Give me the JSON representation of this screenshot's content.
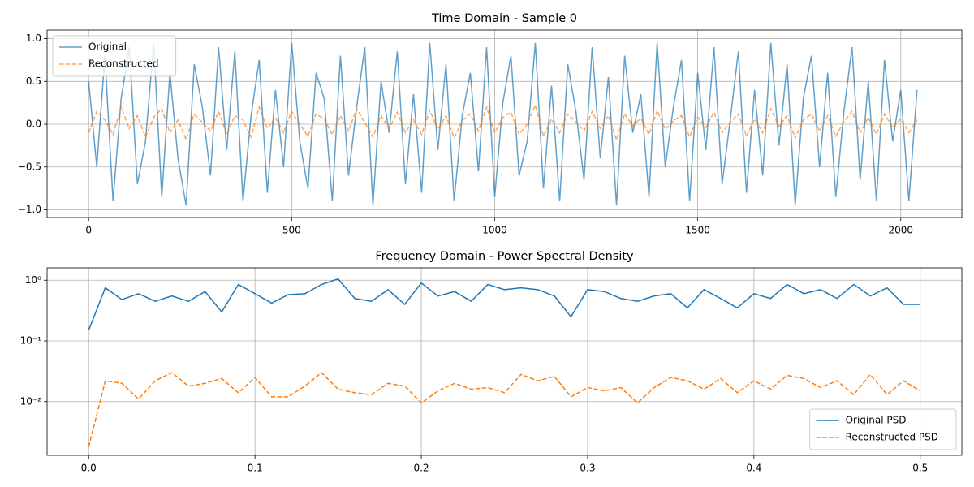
{
  "chart_data": [
    {
      "type": "line",
      "title": "Time Domain - Sample 0",
      "x": [
        0,
        20,
        40,
        60,
        80,
        100,
        120,
        140,
        160,
        180,
        200,
        220,
        240,
        260,
        280,
        300,
        320,
        340,
        360,
        380,
        400,
        420,
        440,
        460,
        480,
        500,
        520,
        540,
        560,
        580,
        600,
        620,
        640,
        660,
        680,
        700,
        720,
        740,
        760,
        780,
        800,
        820,
        840,
        860,
        880,
        900,
        920,
        940,
        960,
        980,
        1000,
        1020,
        1040,
        1060,
        1080,
        1100,
        1120,
        1140,
        1160,
        1180,
        1200,
        1220,
        1240,
        1260,
        1280,
        1300,
        1320,
        1340,
        1360,
        1380,
        1400,
        1420,
        1440,
        1460,
        1480,
        1500,
        1520,
        1540,
        1560,
        1580,
        1600,
        1620,
        1640,
        1660,
        1680,
        1700,
        1720,
        1740,
        1760,
        1780,
        1800,
        1820,
        1840,
        1860,
        1880,
        1900,
        1920,
        1940,
        1960,
        1980,
        2000,
        2020,
        2040
      ],
      "series": [
        {
          "name": "Original",
          "color": "#1f77b4",
          "opacity": 0.7,
          "linestyle": "solid",
          "values": [
            0.5,
            -0.5,
            0.8,
            -0.9,
            0.3,
            0.9,
            -0.7,
            -0.2,
            0.95,
            -0.85,
            0.6,
            -0.4,
            -0.95,
            0.7,
            0.2,
            -0.6,
            0.9,
            -0.3,
            0.85,
            -0.9,
            0.1,
            0.75,
            -0.8,
            0.4,
            -0.5,
            0.95,
            -0.2,
            -0.75,
            0.6,
            0.3,
            -0.9,
            0.8,
            -0.6,
            0.2,
            0.9,
            -0.95,
            0.5,
            -0.1,
            0.85,
            -0.7,
            0.35,
            -0.8,
            0.95,
            -0.3,
            0.7,
            -0.9,
            0.1,
            0.6,
            -0.55,
            0.9,
            -0.85,
            0.25,
            0.8,
            -0.6,
            -0.2,
            0.95,
            -0.75,
            0.45,
            -0.9,
            0.7,
            0.15,
            -0.65,
            0.9,
            -0.4,
            0.55,
            -0.95,
            0.8,
            -0.1,
            0.35,
            -0.85,
            0.95,
            -0.5,
            0.2,
            0.75,
            -0.9,
            0.6,
            -0.3,
            0.9,
            -0.7,
            0.05,
            0.85,
            -0.8,
            0.4,
            -0.6,
            0.95,
            -0.25,
            0.7,
            -0.95,
            0.3,
            0.8,
            -0.5,
            0.6,
            -0.85,
            0.15,
            0.9,
            -0.65,
            0.5,
            -0.9,
            0.75,
            -0.2,
            0.4,
            -0.9,
            0.4
          ]
        },
        {
          "name": "Reconstructed",
          "color": "#ff7f0e",
          "opacity": 0.7,
          "linestyle": "dashed",
          "values": [
            -0.1,
            0.15,
            0.05,
            -0.12,
            0.2,
            -0.05,
            0.1,
            -0.15,
            0.08,
            0.18,
            -0.1,
            0.05,
            -0.18,
            0.12,
            0.02,
            -0.08,
            0.15,
            -0.12,
            0.1,
            0.05,
            -0.15,
            0.2,
            -0.05,
            0.08,
            -0.1,
            0.15,
            0.0,
            -0.14,
            0.12,
            0.06,
            -0.12,
            0.1,
            -0.08,
            0.18,
            0.02,
            -0.15,
            0.1,
            -0.05,
            0.14,
            -0.1,
            0.05,
            -0.12,
            0.16,
            -0.06,
            0.1,
            -0.16,
            0.04,
            0.12,
            -0.08,
            0.2,
            -0.1,
            0.08,
            0.14,
            -0.12,
            0.0,
            0.22,
            -0.14,
            0.06,
            -0.1,
            0.12,
            0.03,
            -0.08,
            0.15,
            -0.05,
            0.1,
            -0.18,
            0.12,
            -0.02,
            0.07,
            -0.12,
            0.16,
            -0.06,
            0.04,
            0.1,
            -0.15,
            0.08,
            -0.04,
            0.14,
            -0.1,
            0.02,
            0.12,
            -0.14,
            0.06,
            -0.1,
            0.18,
            -0.03,
            0.1,
            -0.16,
            0.05,
            0.12,
            -0.08,
            0.1,
            -0.14,
            0.03,
            0.15,
            -0.1,
            0.08,
            -0.12,
            0.12,
            -0.04,
            0.06,
            -0.1,
            0.05
          ]
        }
      ],
      "xlim": [
        -102.4,
        2150.4
      ],
      "ylim": [
        -1.09,
        1.1
      ],
      "xticks": [
        0,
        500,
        1000,
        1500,
        2000
      ],
      "yticks": [
        {
          "value": -1,
          "label": "−1.0"
        },
        {
          "value": -0.5,
          "label": "−0.5"
        },
        {
          "value": 0,
          "label": "0.0"
        },
        {
          "value": 0.5,
          "label": "0.5"
        },
        {
          "value": 1,
          "label": "1.0"
        }
      ],
      "yscale": "linear",
      "grid": true,
      "legend": "upper-left"
    },
    {
      "type": "line",
      "title": "Frequency Domain - Power Spectral Density",
      "x": [
        0,
        0.01,
        0.02,
        0.03,
        0.04,
        0.05,
        0.06,
        0.07,
        0.08,
        0.09,
        0.1,
        0.11,
        0.12,
        0.13,
        0.14,
        0.15,
        0.16,
        0.17,
        0.18,
        0.19,
        0.2,
        0.21,
        0.22,
        0.23,
        0.24,
        0.25,
        0.26,
        0.27,
        0.28,
        0.29,
        0.3,
        0.31,
        0.32,
        0.33,
        0.34,
        0.35,
        0.36,
        0.37,
        0.38,
        0.39,
        0.4,
        0.41,
        0.42,
        0.43,
        0.44,
        0.45,
        0.46,
        0.47,
        0.48,
        0.49,
        0.5
      ],
      "series": [
        {
          "name": "Original PSD",
          "color": "#1f77b4",
          "opacity": 1,
          "linestyle": "solid",
          "values": [
            0.15,
            0.75,
            0.48,
            0.6,
            0.45,
            0.55,
            0.45,
            0.65,
            0.3,
            0.85,
            0.6,
            0.42,
            0.58,
            0.6,
            0.85,
            1.05,
            0.5,
            0.45,
            0.7,
            0.4,
            0.9,
            0.55,
            0.65,
            0.45,
            0.85,
            0.7,
            0.75,
            0.7,
            0.55,
            0.25,
            0.7,
            0.65,
            0.5,
            0.45,
            0.55,
            0.6,
            0.35,
            0.7,
            0.5,
            0.35,
            0.6,
            0.5,
            0.85,
            0.6,
            0.7,
            0.5,
            0.85,
            0.55,
            0.75,
            0.4,
            0.4
          ]
        },
        {
          "name": "Reconstructed PSD",
          "color": "#ff7f0e",
          "opacity": 1,
          "linestyle": "dashed",
          "values": [
            0.0018,
            0.022,
            0.02,
            0.011,
            0.022,
            0.03,
            0.018,
            0.02,
            0.024,
            0.014,
            0.025,
            0.012,
            0.012,
            0.018,
            0.03,
            0.016,
            0.014,
            0.013,
            0.02,
            0.018,
            0.0095,
            0.015,
            0.02,
            0.016,
            0.017,
            0.014,
            0.028,
            0.022,
            0.026,
            0.012,
            0.017,
            0.015,
            0.017,
            0.0095,
            0.017,
            0.025,
            0.022,
            0.016,
            0.024,
            0.014,
            0.022,
            0.016,
            0.027,
            0.024,
            0.017,
            0.022,
            0.013,
            0.028,
            0.013,
            0.022,
            0.015
          ]
        }
      ],
      "xlim": [
        -0.025,
        0.525
      ],
      "ylim": [
        0.0013,
        1.6
      ],
      "xticks": [
        {
          "value": 0,
          "label": "0.0"
        },
        0.1,
        0.2,
        0.3,
        0.4,
        0.5
      ],
      "yticks": [
        {
          "value": 0.01,
          "label": "10⁻²"
        },
        {
          "value": 0.1,
          "label": "10⁻¹"
        },
        {
          "value": 1,
          "label": "10⁰"
        }
      ],
      "yscale": "log",
      "grid": true,
      "legend": "lower-right"
    }
  ]
}
